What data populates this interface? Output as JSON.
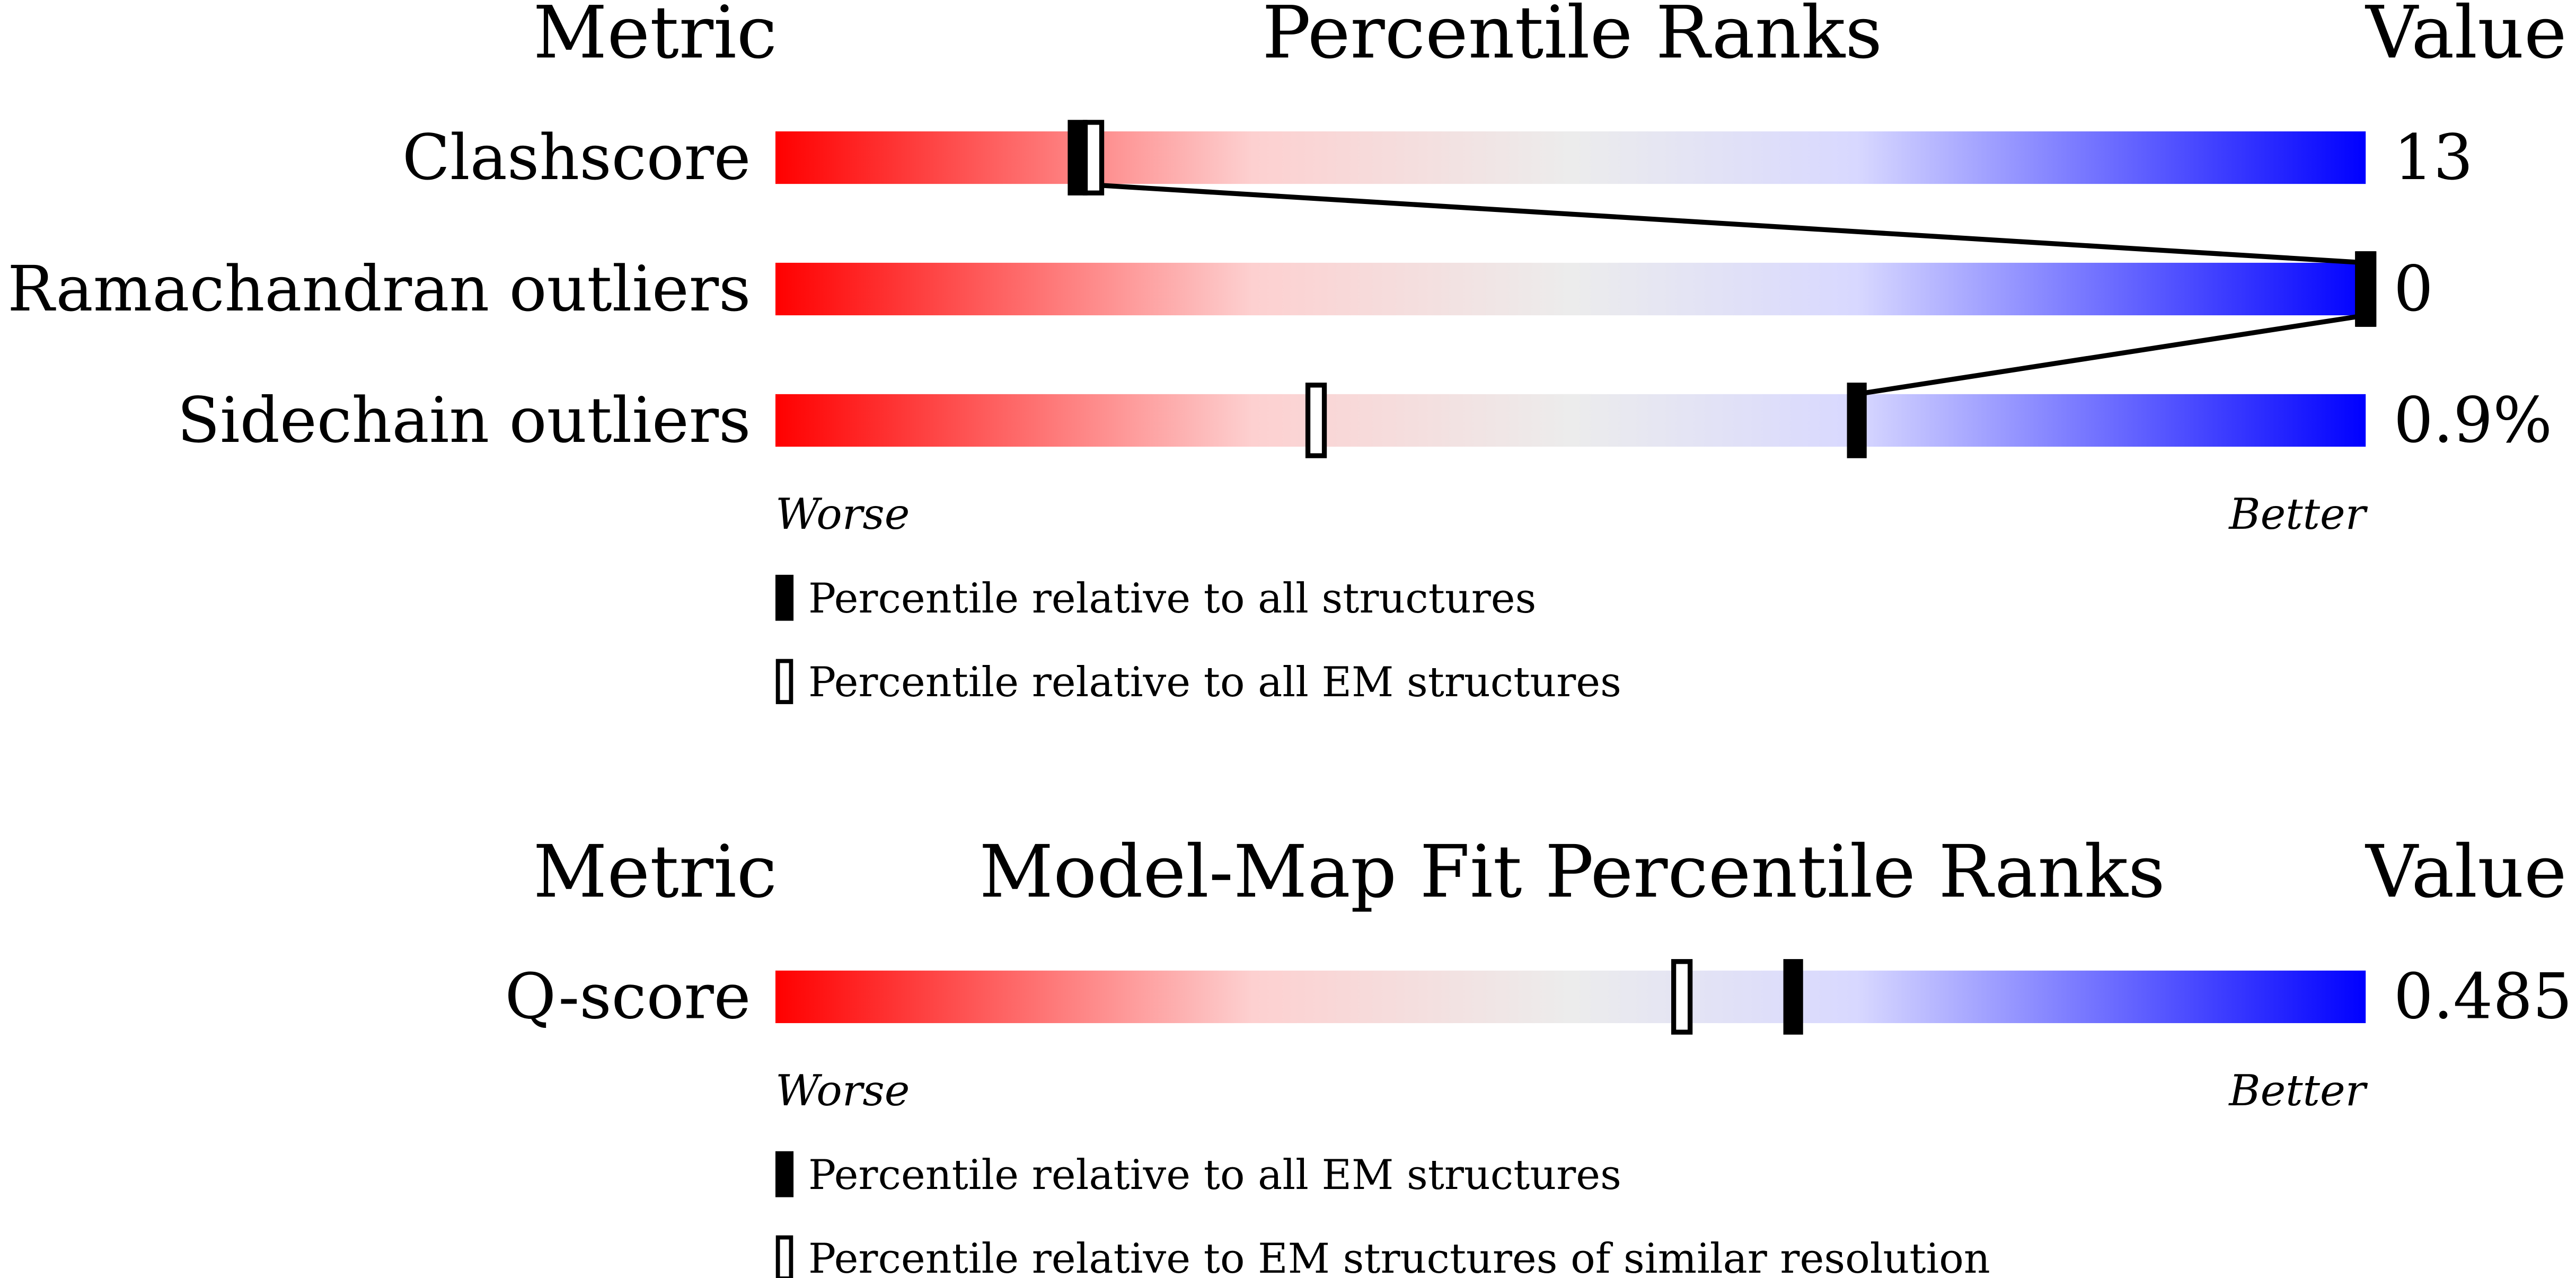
{
  "chart_data": [
    {
      "type": "percentile-slider",
      "metric_header": "Metric",
      "title": "Percentile Ranks",
      "value_header": "Value",
      "categories": [
        "Clashscore",
        "Ramachandran outliers",
        "Sidechain outliers"
      ],
      "metric_values": [
        "13",
        "0",
        "0.9%"
      ],
      "xlim": [
        0,
        100
      ],
      "worse_label": "Worse",
      "better_label": "Better",
      "connect_series": 0,
      "series": [
        {
          "name": "Percentile relative to all structures",
          "style": "filled",
          "color": "#000000",
          "values": [
            19,
            100,
            68
          ]
        },
        {
          "name": "Percentile relative to all EM structures",
          "style": "open",
          "color": "#000000",
          "values": [
            20,
            100,
            34
          ]
        }
      ]
    },
    {
      "type": "percentile-slider",
      "metric_header": "Metric",
      "title": "Model-Map Fit Percentile Ranks",
      "value_header": "Value",
      "categories": [
        "Q-score"
      ],
      "metric_values": [
        "0.485"
      ],
      "xlim": [
        0,
        100
      ],
      "worse_label": "Worse",
      "better_label": "Better",
      "series": [
        {
          "name": "Percentile relative to all EM structures",
          "style": "filled",
          "color": "#000000",
          "values": [
            64
          ]
        },
        {
          "name": "Percentile relative to EM structures of similar resolution",
          "style": "open",
          "color": "#000000",
          "values": [
            57
          ]
        }
      ]
    }
  ]
}
